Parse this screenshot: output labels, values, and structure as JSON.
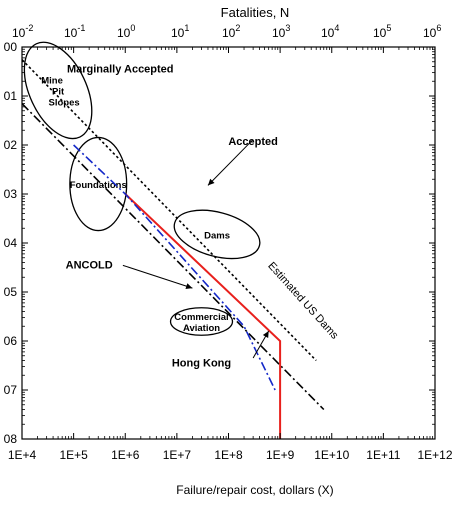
{
  "chart_data": {
    "type": "line",
    "x_axis": {
      "label": "Failure/repair cost, dollars (X)",
      "scale": "log",
      "range": [
        "1E+4",
        "1E+12"
      ],
      "ticks": [
        "1E+4",
        "1E+5",
        "1E+6",
        "1E+7",
        "1E+8",
        "1E+9",
        "1E+10",
        "1E+11",
        "1E+12"
      ]
    },
    "top_axis": {
      "label": "Fatalities, N",
      "scale": "log",
      "ticks": [
        {
          "base": "10",
          "exp": "-2"
        },
        {
          "base": "10",
          "exp": "-1"
        },
        {
          "base": "10",
          "exp": "0"
        },
        {
          "base": "10",
          "exp": "1"
        },
        {
          "base": "10",
          "exp": "2"
        },
        {
          "base": "10",
          "exp": "3"
        },
        {
          "base": "10",
          "exp": "4"
        },
        {
          "base": "10",
          "exp": "5"
        },
        {
          "base": "10",
          "exp": "6"
        }
      ]
    },
    "y_axis": {
      "label": "",
      "scale": "log",
      "range": [
        1,
        1e-08
      ],
      "ticks": [
        "00",
        "01",
        "02",
        "03",
        "04",
        "05",
        "06",
        "07",
        "08"
      ]
    },
    "series": [
      {
        "name": "Marginally Accepted",
        "style": "dotted",
        "color": "#000000",
        "points": [
          [
            10000,
            0.55
          ],
          [
            5000000000,
            4e-07
          ]
        ]
      },
      {
        "name": "Accepted",
        "style": "dash-dot",
        "color": "#000000",
        "points": [
          [
            10000,
            0.07
          ],
          [
            7000000000,
            4e-08
          ]
        ]
      },
      {
        "name": "ANCOLD",
        "style": "solid",
        "color": "#e8201c",
        "points": [
          [
            1000000,
            0.001
          ],
          [
            1000000000,
            1e-06
          ],
          [
            1000000000,
            1e-08
          ]
        ]
      },
      {
        "name": "Estimated US Dams",
        "style": "dash-dot",
        "color": "#1428c8",
        "points": [
          [
            100000,
            0.01
          ],
          [
            1000000,
            0.001
          ],
          [
            200000000,
            2e-06
          ],
          [
            800000000,
            1e-07
          ]
        ]
      }
    ],
    "regions": [
      {
        "name": "Mine Pit Slopes",
        "lines": [
          "Mine",
          "Pit",
          "Slopes"
        ],
        "center": [
          50000,
          0.13
        ],
        "rx_decades": 0.55,
        "ry_decades": 1.05,
        "tilt": -25
      },
      {
        "name": "Foundations",
        "lines": [
          "Foundations"
        ],
        "center": [
          300000,
          0.0016
        ],
        "rx_decades": 0.55,
        "ry_decades": 0.95,
        "tilt": 0
      },
      {
        "name": "Dams",
        "lines": [
          "Dams"
        ],
        "center": [
          60000000,
          0.00015
        ],
        "rx_decades": 0.85,
        "ry_decades": 0.45,
        "tilt": 15
      },
      {
        "name": "Commercial Aviation",
        "lines": [
          "Commercial",
          "Aviation"
        ],
        "center": [
          30000000,
          2.5e-06
        ],
        "rx_decades": 0.6,
        "ry_decades": 0.28,
        "tilt": 0
      }
    ],
    "annotations": [
      {
        "text": "Marginally Accepted",
        "at": [
          800000,
          0.3
        ],
        "pointer": [
          null,
          null
        ]
      },
      {
        "text": "Accepted",
        "at": [
          300000000,
          0.01
        ],
        "pointer": [
          [
            300000000,
            0.013
          ],
          [
            40000000,
            0.0015
          ]
        ]
      },
      {
        "text": "ANCOLD",
        "at": [
          200000,
          3e-05
        ],
        "pointer": [
          [
            900000,
            3.5e-05
          ],
          [
            20000000,
            1.2e-05
          ]
        ]
      },
      {
        "text": "Hong Kong",
        "at": [
          30000000,
          3e-07
        ],
        "pointer": [
          [
            300000000,
            4.5e-07
          ],
          [
            600000000,
            1.6e-06
          ]
        ]
      },
      {
        "text": "Estimated US Dams",
        "at": [
          2500000000,
          6e-06
        ],
        "rotate": 48,
        "plain": true
      }
    ],
    "grid": false,
    "legend": "none"
  }
}
